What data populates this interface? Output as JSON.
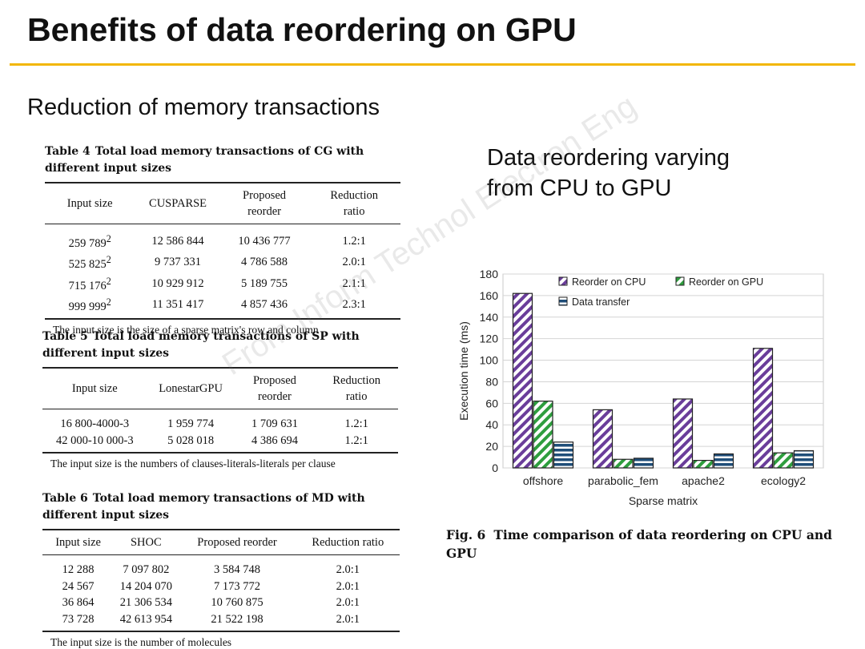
{
  "slide": {
    "title": "Benefits of data reordering on GPU",
    "subtitle": "Reduction of memory transactions",
    "figure_heading": [
      "Data reordering varying",
      "from CPU to GPU"
    ],
    "watermark": "From Inform Technol Electron Eng",
    "accent_color": "#f2b705"
  },
  "tables": [
    {
      "number": "Table 4",
      "caption": "Total load memory transactions of CG with different input sizes",
      "headers": [
        "Input size",
        "CUSPARSE",
        "Proposed reorder",
        "Reduction ratio"
      ],
      "rows": [
        {
          "size": "259 789",
          "sup": "2",
          "baseline": "12 586 844",
          "proposed": "10 436 777",
          "ratio": "1.2:1"
        },
        {
          "size": "525 825",
          "sup": "2",
          "baseline": "9 737 331",
          "proposed": "4 786 588",
          "ratio": "2.0:1"
        },
        {
          "size": "715 176",
          "sup": "2",
          "baseline": "10 929 912",
          "proposed": "5 189 755",
          "ratio": "2.1:1"
        },
        {
          "size": "999 999",
          "sup": "2",
          "baseline": "11 351 417",
          "proposed": "4 857 436",
          "ratio": "2.3:1"
        }
      ],
      "note": "The input size is the size of a sparse matrix's row and column"
    },
    {
      "number": "Table 5",
      "caption": "Total load memory transactions of SP with different input sizes",
      "headers": [
        "Input size",
        "LonestarGPU",
        "Proposed reorder",
        "Reduction ratio"
      ],
      "rows": [
        {
          "size": "16 800-4000-3",
          "baseline": "1 959 774",
          "proposed": "1 709 631",
          "ratio": "1.2:1"
        },
        {
          "size": "42 000-10 000-3",
          "baseline": "5 028 018",
          "proposed": "4 386 694",
          "ratio": "1.2:1"
        }
      ],
      "note": "The input size is the numbers of clauses-literals-literals per clause"
    },
    {
      "number": "Table 6",
      "caption": "Total load memory transactions of MD with different input sizes",
      "headers": [
        "Input size",
        "SHOC",
        "Proposed reorder",
        "Reduction ratio"
      ],
      "rows": [
        {
          "size": "12 288",
          "baseline": "7 097 802",
          "proposed": "3 584 748",
          "ratio": "2.0:1"
        },
        {
          "size": "24 567",
          "baseline": "14 204 070",
          "proposed": "7 173 772",
          "ratio": "2.0:1"
        },
        {
          "size": "36 864",
          "baseline": "21 306 534",
          "proposed": "10 760 875",
          "ratio": "2.0:1"
        },
        {
          "size": "73 728",
          "baseline": "42 613 954",
          "proposed": "21 522 198",
          "ratio": "2.0:1"
        }
      ],
      "note": "The input size is the number of molecules"
    }
  ],
  "figure": {
    "number": "Fig. 6",
    "caption": "Time comparison of data reordering on CPU and GPU"
  },
  "chart_data": {
    "type": "bar",
    "categories": [
      "offshore",
      "parabolic_fem",
      "apache2",
      "ecology2"
    ],
    "series": [
      {
        "name": "Reorder on CPU",
        "values": [
          162,
          54,
          64,
          111
        ],
        "color": "#6a3d9a",
        "pattern": "diagonal-hatch"
      },
      {
        "name": "Reorder on GPU",
        "values": [
          62,
          8,
          7,
          14
        ],
        "color": "#2e9e3e",
        "pattern": "diagonal-hatch"
      },
      {
        "name": "Data transfer",
        "values": [
          24,
          9,
          13,
          16
        ],
        "color": "#1f4e79",
        "pattern": "horizontal-stripes"
      }
    ],
    "xlabel": "Sparse matrix",
    "ylabel": "Execution time (ms)",
    "ylim": [
      0,
      180
    ],
    "yticks": [
      0,
      20,
      40,
      60,
      80,
      100,
      120,
      140,
      160,
      180
    ],
    "grid": true,
    "legend_position": "top"
  }
}
